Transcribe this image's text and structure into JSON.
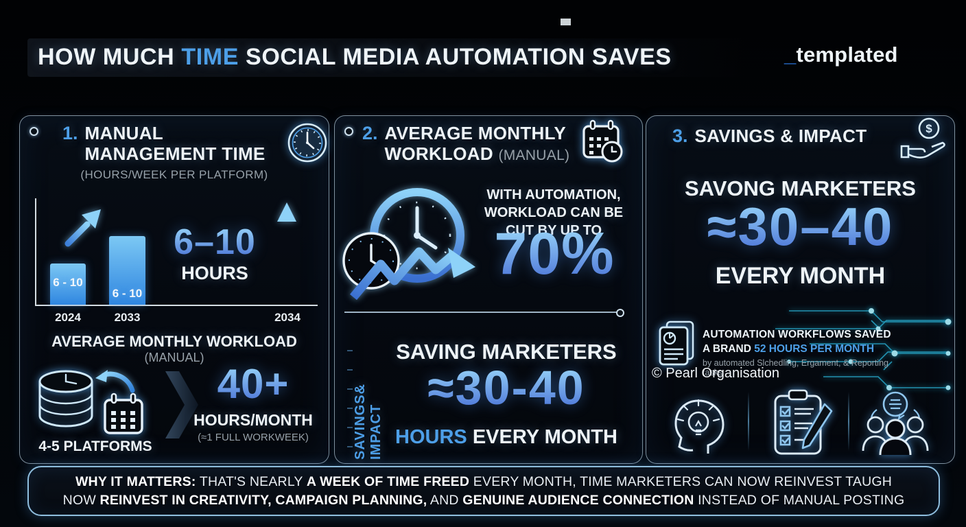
{
  "header": {
    "title": {
      "pre": "HOW MUCH ",
      "highlight": "TIME",
      "post": " SOCIAL MEDIA AUTOMATION SAVES"
    },
    "brand": {
      "underscore": "_",
      "name": "templated"
    }
  },
  "panel1": {
    "number": "1.",
    "title_line1": "MANUAL",
    "title_line2": "MANAGEMENT TIME",
    "subtitle": "(HOURS/WEEK PER PLATFORM)",
    "big_value": "6–10",
    "big_unit": "HOURS",
    "workload_title": "AVERAGE MONTHLY WORKLOAD",
    "workload_subtitle": "(MANUAL)",
    "platforms_label": "4-5 PLATFORMS",
    "hours_value": "40+",
    "hours_unit": "HOURS/MONTH",
    "hours_note": "(≈1 FULL WORKWEEK)"
  },
  "panel2": {
    "number": "2.",
    "title_line1": "AVERAGE MONTHLY",
    "title_line2": "WORKLOAD",
    "title_suffix": "(MANUAL)",
    "automation_line1": "WITH AUTOMATION,",
    "automation_line2": "WORKLOAD CAN BE",
    "automation_line3": "CUT BY UP TO",
    "percent_value": "70%",
    "side_label": "SAVINGS& IMPACT",
    "saving_title": "SAVING MARKETERS",
    "saving_value": "≈30-40",
    "saving_unit_highlight": "HOURS",
    "saving_unit_rest": " EVERY MONTH"
  },
  "panel3": {
    "number": "3.",
    "title": "SAVINGS & IMPACT",
    "saving_title": "SAVONG MARKETERS",
    "saving_value": "≈30–40",
    "saving_unit": "EVERY MONTH",
    "callout": {
      "line1": "AUTOMATION WORKFLOWS SAVED",
      "line2_pre": "A BRAND ",
      "line2_highlight": "52 HOURS PER MONTH",
      "note": "by automated Slchedling, Ergament, & Reporting tasks"
    },
    "copyright": "© Pearl Organisation"
  },
  "footer": {
    "label": "WHY IT MATTERS:",
    "line1_seg1": " THAT'S NEARLY ",
    "line1_bold": "A WEEK OF TIME FREED",
    "line1_seg2": " EVERY MONTH, TIME MARKETERS CAN NOW REINVEST TAUGH",
    "line2_seg1": "NOW ",
    "line2_bold1": "REINVEST IN CREATIVITY, CAMPAIGN PLANNING,",
    "line2_seg2": " AND ",
    "line2_bold2": "GENUINE AUDIENCE CONNECTION",
    "line2_seg3": " INSTEAD OF MANUAL POSTING"
  },
  "chart_data": {
    "type": "bar",
    "title": "MANUAL MANAGEMENT TIME (HOURS/WEEK PER PLATFORM)",
    "categories": [
      "2024",
      "2033",
      "2034"
    ],
    "values": [
      6,
      10,
      null
    ],
    "bar_labels": [
      "6 - 10",
      "6 - 10"
    ],
    "annotation": "6–10 HOURS",
    "notes": "third category marked only by an upward arrow, no bar",
    "ylim": [
      0,
      12
    ],
    "grid": false
  },
  "colors": {
    "accent_blue": "#4d9fe8",
    "number_gradient_top": "#99d6fa",
    "number_gradient_bottom": "#4a72d6",
    "bar_gradient_top": "#7cc8f4",
    "bar_gradient_bottom": "#2f86e0",
    "muted_gray": "#97a1a9",
    "panel_border": "#a9bfce",
    "circuit_cyan": "#35d3f2",
    "background": "#020507"
  }
}
